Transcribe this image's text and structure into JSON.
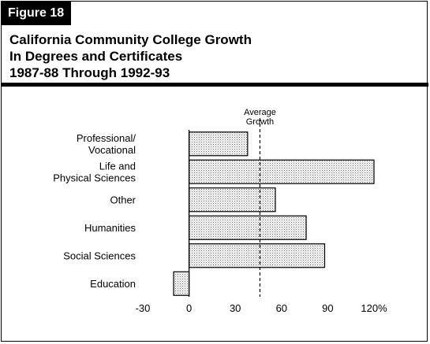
{
  "figure_label": "Figure 18",
  "chart_data": {
    "type": "bar",
    "orientation": "horizontal",
    "title_lines": [
      "California Community College Growth",
      "In Degrees and Certificates",
      "1987-88 Through 1992-93"
    ],
    "categories": [
      [
        "Professional/",
        "Vocational"
      ],
      [
        "Life and",
        "Physical Sciences"
      ],
      [
        "Other"
      ],
      [
        "Humanities"
      ],
      [
        "Social Sciences"
      ],
      [
        "Education"
      ]
    ],
    "values": [
      38,
      120,
      56,
      76,
      88,
      -10
    ],
    "xlim": [
      -30,
      120
    ],
    "xticks": [
      -30,
      0,
      30,
      60,
      90,
      120
    ],
    "xtick_labels": [
      "-30",
      "0",
      "30",
      "60",
      "90",
      "120%"
    ],
    "reference_line": {
      "value": 46,
      "label_lines": [
        "Average",
        "Growth"
      ],
      "style": "dashed"
    },
    "bar_fill": "stippled gray",
    "grid": false,
    "legend": "none"
  }
}
